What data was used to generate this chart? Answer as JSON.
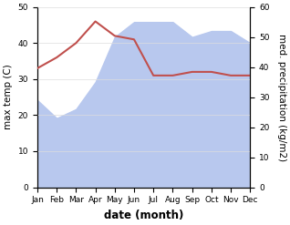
{
  "months": [
    "Jan",
    "Feb",
    "Mar",
    "Apr",
    "May",
    "Jun",
    "Jul",
    "Aug",
    "Sep",
    "Oct",
    "Nov",
    "Dec"
  ],
  "temperature": [
    33,
    36,
    40,
    46,
    42,
    41,
    31,
    31,
    32,
    32,
    31,
    31
  ],
  "precipitation": [
    29,
    23,
    26,
    35,
    50,
    55,
    55,
    55,
    50,
    52,
    52,
    48
  ],
  "temp_color": "#c0504d",
  "precip_fill_color": "#b8c8ee",
  "temp_ylim": [
    0,
    50
  ],
  "precip_ylim": [
    0,
    60
  ],
  "xlabel": "date (month)",
  "ylabel_left": "max temp (C)",
  "ylabel_right": "med. precipitation (kg/m2)",
  "label_fontsize": 7.5,
  "tick_fontsize": 6.5,
  "xlabel_fontsize": 8.5,
  "linewidth": 1.5
}
